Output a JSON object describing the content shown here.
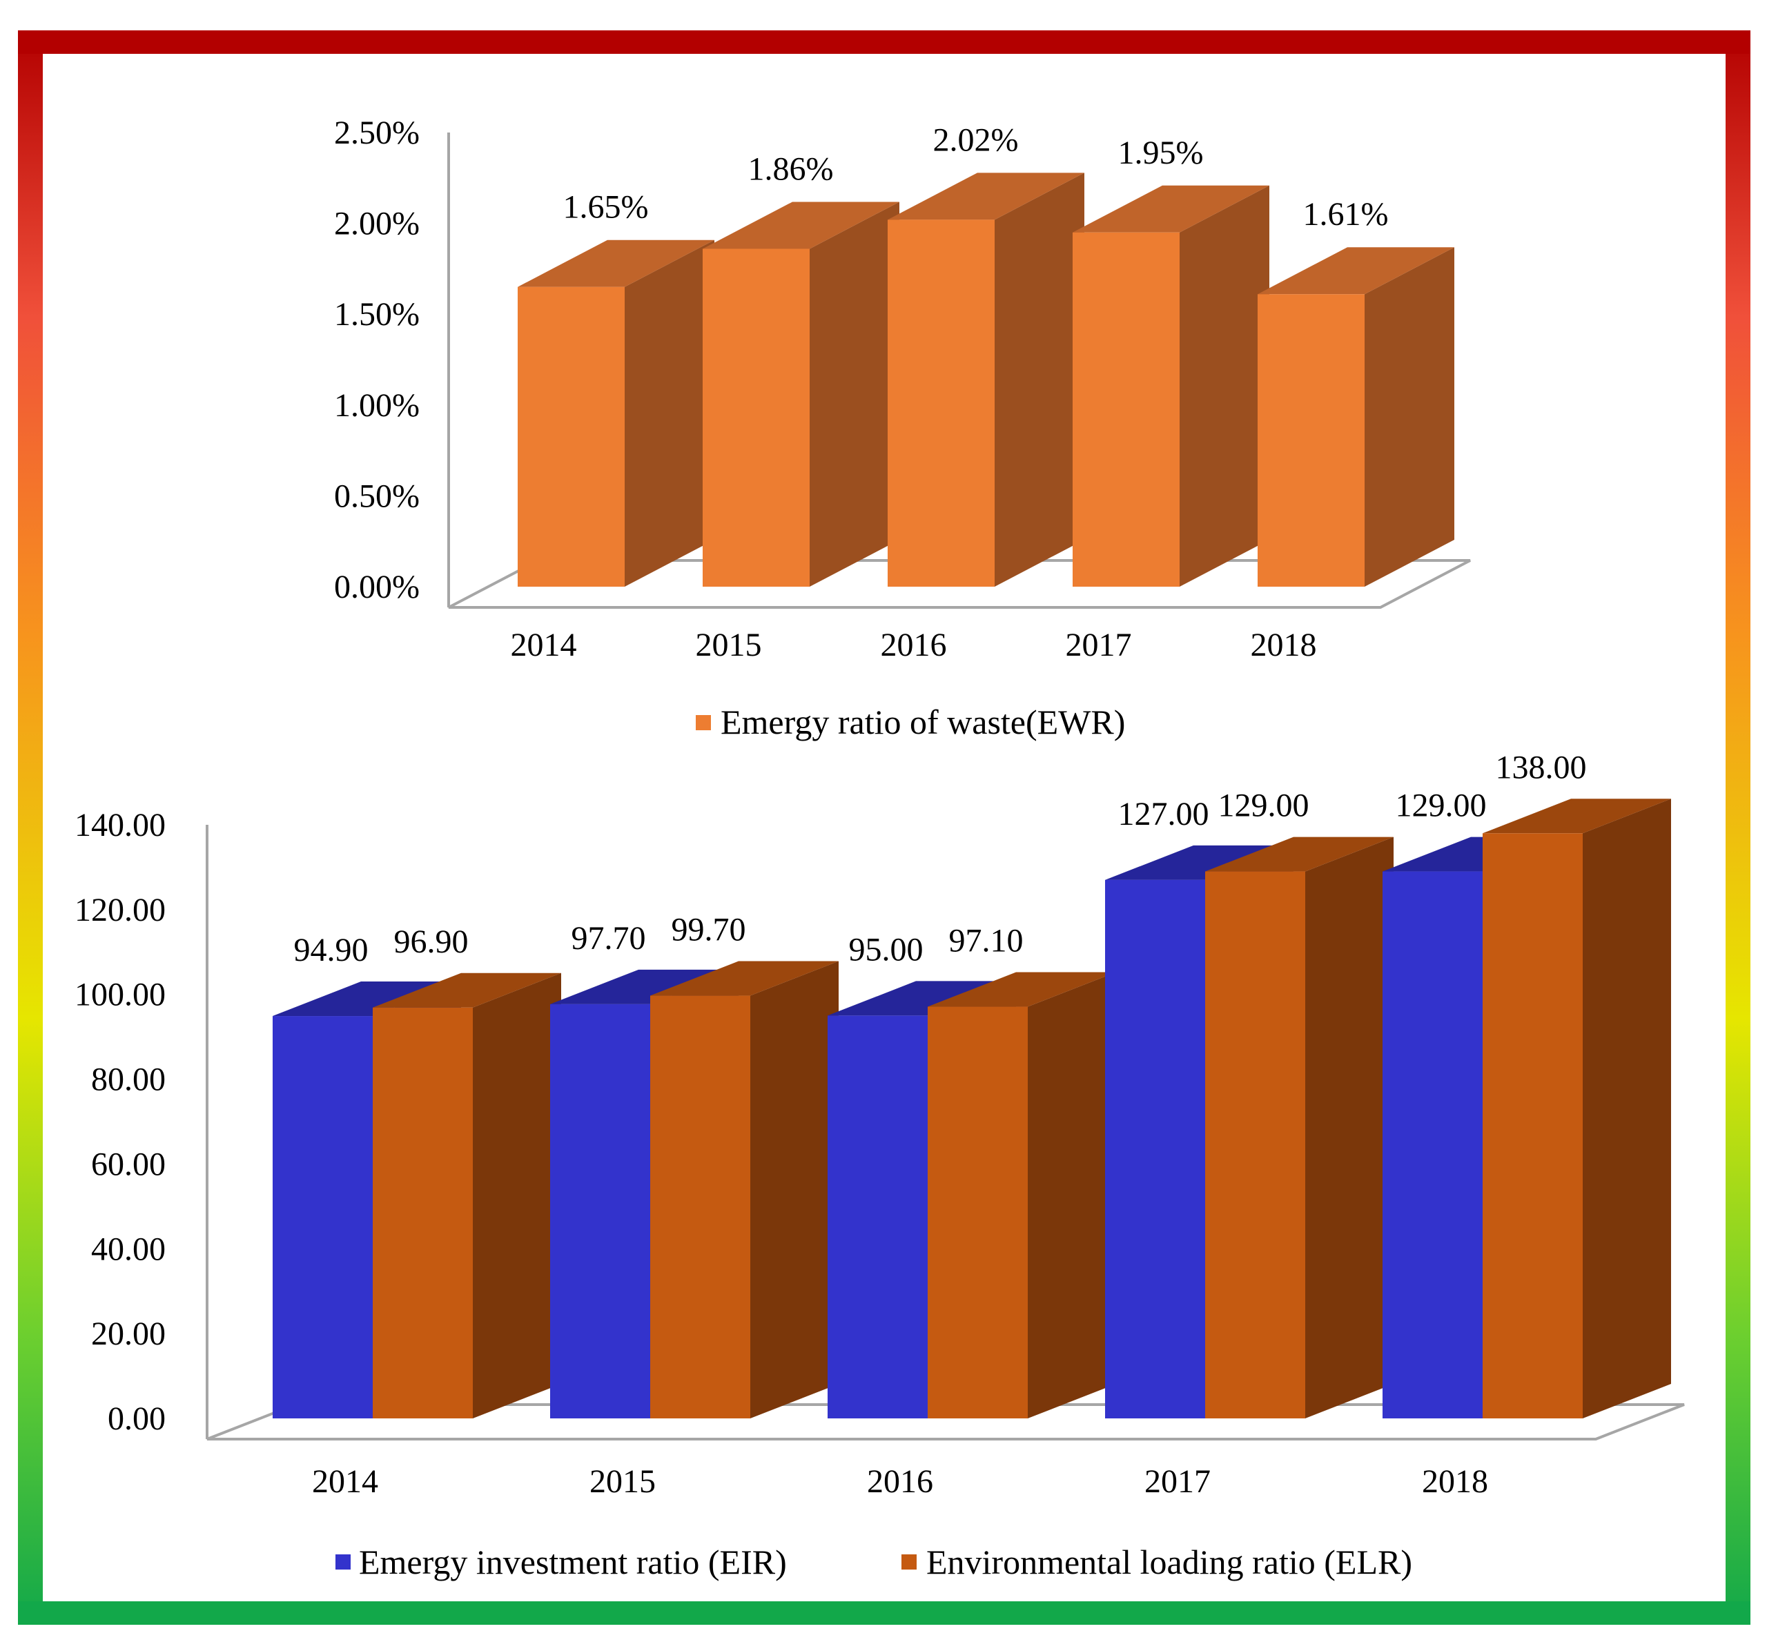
{
  "colors": {
    "frame_top": "#b30000",
    "frame_mid_red": "#f0503a",
    "frame_orange": "#f7941d",
    "frame_yellow": "#f6d400",
    "frame_green": "#12a84a",
    "ewr_front": "#ed7d31",
    "ewr_top": "#c0642a",
    "ewr_side": "#9b4f1f",
    "eir_front": "#3333cc",
    "eir_top": "#25259a",
    "eir_side": "#1e1e80",
    "elr_front": "#c55a11",
    "elr_top": "#9c470d",
    "elr_side": "#7b370a",
    "axis": "#a6a6a6"
  },
  "chart_data": [
    {
      "type": "bar",
      "title": "",
      "categories": [
        "2014",
        "2015",
        "2016",
        "2017",
        "2018"
      ],
      "series": [
        {
          "name": "Emergy ratio of waste(EWR)",
          "values": [
            1.65,
            1.86,
            2.02,
            1.95,
            1.61
          ],
          "labels": [
            "1.65%",
            "1.86%",
            "2.02%",
            "1.95%",
            "1.61%"
          ]
        }
      ],
      "ylim": [
        0,
        2.5
      ],
      "yticks": [
        "0.00%",
        "0.50%",
        "1.00%",
        "1.50%",
        "2.00%",
        "2.50%"
      ],
      "xlabel": "",
      "ylabel": "",
      "legend": "bottom",
      "grid": false
    },
    {
      "type": "bar",
      "title": "",
      "categories": [
        "2014",
        "2015",
        "2016",
        "2017",
        "2018"
      ],
      "series": [
        {
          "name": "Emergy investment ratio (EIR)",
          "values": [
            94.9,
            97.7,
            95.0,
            127.0,
            129.0
          ],
          "labels": [
            "94.90",
            "97.70",
            "95.00",
            "127.00",
            "129.00"
          ]
        },
        {
          "name": "Environmental loading ratio (ELR)",
          "values": [
            96.9,
            99.7,
            97.1,
            129.0,
            138.0
          ],
          "labels": [
            "96.90",
            "99.70",
            "97.10",
            "129.00",
            "138.00"
          ]
        }
      ],
      "ylim": [
        0,
        140
      ],
      "yticks": [
        "0.00",
        "20.00",
        "40.00",
        "60.00",
        "80.00",
        "100.00",
        "120.00",
        "140.00"
      ],
      "xlabel": "",
      "ylabel": "",
      "legend": "bottom",
      "grid": false
    }
  ]
}
